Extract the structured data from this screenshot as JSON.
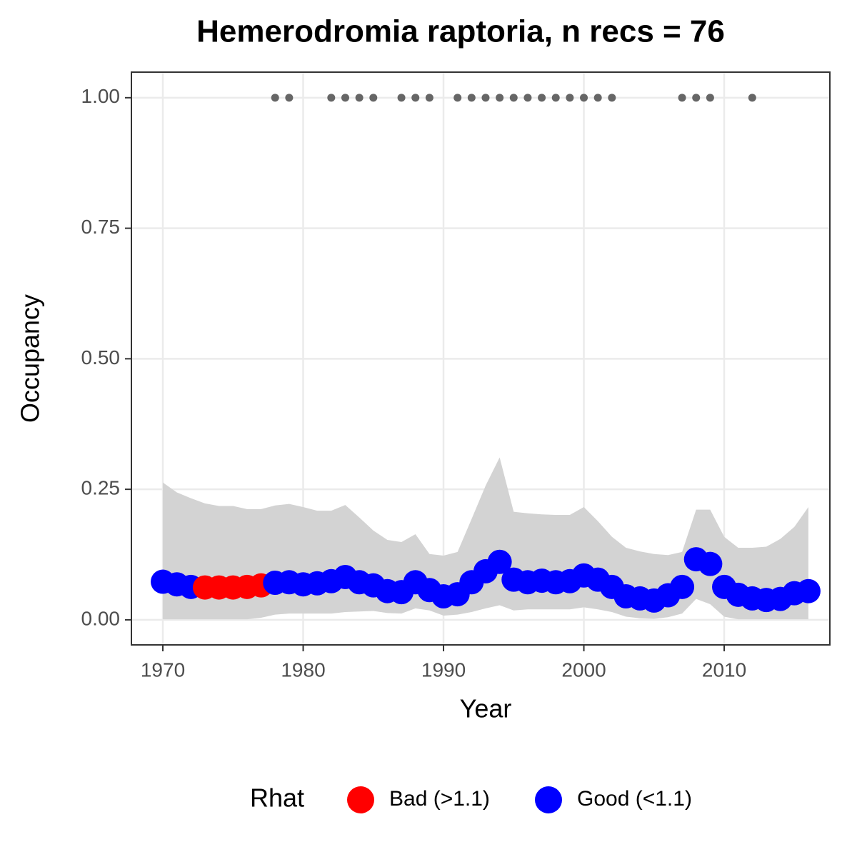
{
  "chart_data": {
    "type": "scatter",
    "title": "Hemerodromia raptoria, n recs = 76",
    "x_label": "Year",
    "y_label": "Occupancy",
    "legend_title": "Rhat",
    "x": [
      1970,
      1971,
      1972,
      1973,
      1974,
      1975,
      1976,
      1977,
      1978,
      1979,
      1980,
      1981,
      1982,
      1983,
      1984,
      1985,
      1986,
      1987,
      1988,
      1989,
      1990,
      1991,
      1992,
      1993,
      1994,
      1995,
      1996,
      1997,
      1998,
      1999,
      2000,
      2001,
      2002,
      2003,
      2004,
      2005,
      2006,
      2007,
      2008,
      2009,
      2010,
      2011,
      2012,
      2013,
      2014,
      2015,
      2016
    ],
    "series": [
      {
        "name": "Bad (>1.1)",
        "color": "#ff0000",
        "values": [
          null,
          null,
          null,
          0.062,
          0.062,
          0.062,
          0.063,
          0.066,
          null,
          null,
          null,
          null,
          null,
          null,
          null,
          null,
          null,
          null,
          null,
          null,
          null,
          null,
          null,
          null,
          null,
          null,
          null,
          null,
          null,
          null,
          null,
          null,
          null,
          null,
          null,
          null,
          null,
          null,
          null,
          null,
          null,
          null,
          null,
          null,
          null,
          null,
          null
        ]
      },
      {
        "name": "Good (<1.1)",
        "color": "#0000ff",
        "values": [
          0.073,
          0.068,
          0.063,
          null,
          null,
          null,
          null,
          null,
          0.071,
          0.072,
          0.068,
          0.07,
          0.074,
          0.082,
          0.072,
          0.066,
          0.055,
          0.053,
          0.072,
          0.057,
          0.045,
          0.049,
          0.072,
          0.093,
          0.111,
          0.077,
          0.072,
          0.075,
          0.072,
          0.074,
          0.085,
          0.077,
          0.063,
          0.045,
          0.041,
          0.037,
          0.047,
          0.063,
          0.116,
          0.107,
          0.063,
          0.048,
          0.041,
          0.038,
          0.04,
          0.051,
          0.055
        ]
      }
    ],
    "ci_upper": [
      0.263,
      0.244,
      0.233,
      0.223,
      0.218,
      0.218,
      0.212,
      0.212,
      0.219,
      0.222,
      0.216,
      0.209,
      0.209,
      0.22,
      0.196,
      0.171,
      0.153,
      0.149,
      0.164,
      0.126,
      0.123,
      0.13,
      0.193,
      0.257,
      0.311,
      0.207,
      0.204,
      0.202,
      0.201,
      0.201,
      0.216,
      0.189,
      0.159,
      0.138,
      0.131,
      0.126,
      0.124,
      0.13,
      0.211,
      0.211,
      0.159,
      0.138,
      0.138,
      0.14,
      0.155,
      0.178,
      0.216
    ],
    "ci_lower": [
      0.001,
      0.001,
      0.001,
      0.001,
      0.001,
      0.001,
      0.001,
      0.004,
      0.01,
      0.012,
      0.012,
      0.012,
      0.012,
      0.015,
      0.016,
      0.017,
      0.013,
      0.012,
      0.022,
      0.018,
      0.008,
      0.01,
      0.015,
      0.022,
      0.028,
      0.018,
      0.02,
      0.02,
      0.02,
      0.02,
      0.024,
      0.02,
      0.015,
      0.006,
      0.003,
      0.002,
      0.005,
      0.012,
      0.04,
      0.03,
      0.006,
      0.001,
      0.001,
      0.001,
      0.001,
      0.001,
      0.001
    ],
    "ci_color": "#d3d3d3",
    "records": {
      "color": "#666666",
      "x": [
        1978,
        1979,
        1982,
        1983,
        1984,
        1985,
        1987,
        1988,
        1989,
        1991,
        1992,
        1993,
        1994,
        1995,
        1996,
        1997,
        1998,
        1999,
        2000,
        2001,
        2002,
        2007,
        2008,
        2009,
        2012
      ],
      "values": [
        1,
        1,
        1,
        1,
        1,
        1,
        1,
        1,
        1,
        1,
        1,
        1,
        1,
        1,
        1,
        1,
        1,
        1,
        1,
        1,
        1,
        1,
        1,
        1,
        1
      ]
    },
    "xlim": [
      1967.76,
      2017.53
    ],
    "xticks": [
      1970,
      1980,
      1990,
      2000,
      2010
    ],
    "ylim": [
      -0.048,
      1.049
    ],
    "yticks": [
      {
        "value": 0,
        "label": "0.00"
      },
      {
        "value": 0.25,
        "label": "0.25"
      },
      {
        "value": 0.5,
        "label": "0.50"
      },
      {
        "value": 0.75,
        "label": "0.75"
      },
      {
        "value": 1,
        "label": "1.00"
      }
    ],
    "grid": true,
    "legend_position": "bottom"
  }
}
